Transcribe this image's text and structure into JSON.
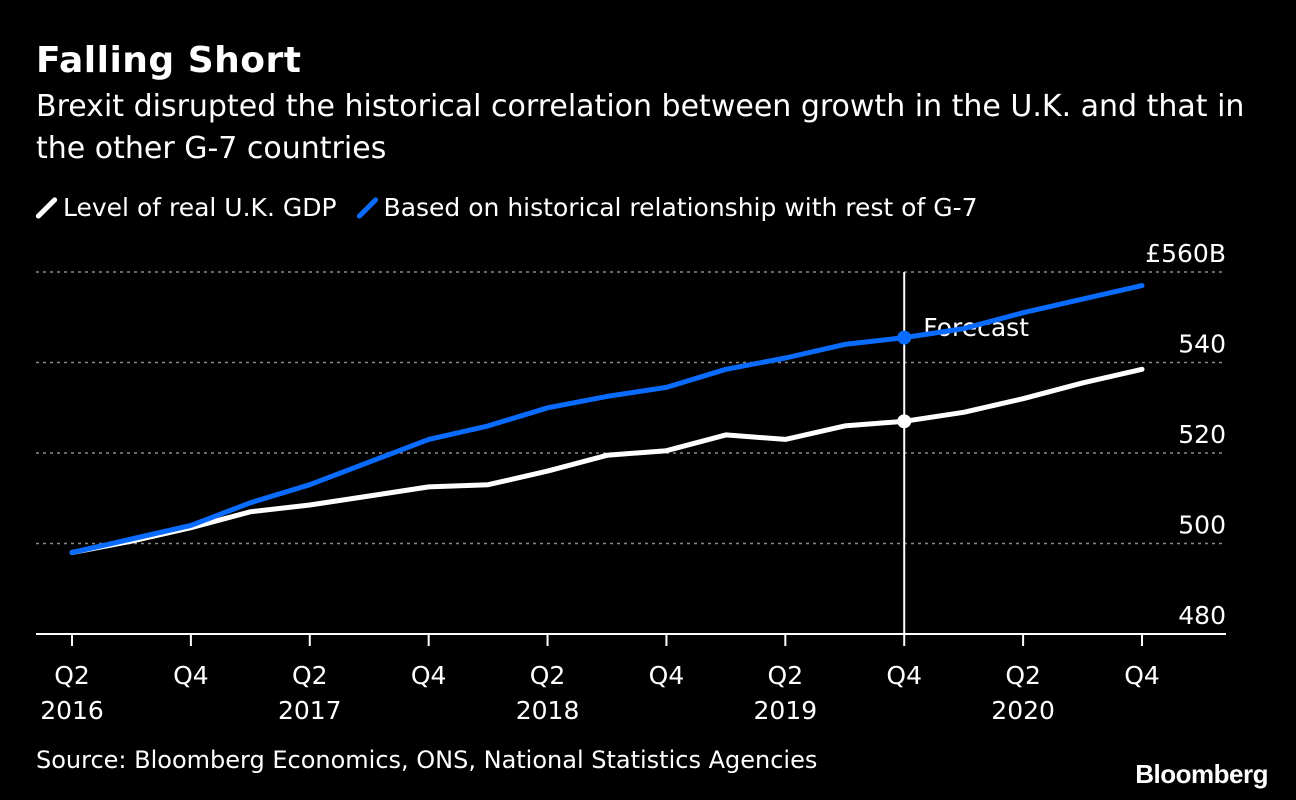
{
  "title": "Falling Short",
  "subtitle": "Brexit disrupted the historical correlation between growth in the U.K. and that in the other G-7 countries",
  "source": "Source: Bloomberg Economics, ONS, National Statistics Agencies",
  "brand": "Bloomberg",
  "colors": {
    "background": "#000000",
    "uk_gdp": "#ffffff",
    "g7_relationship": "#0a6cff",
    "grid": "#8a8a8a"
  },
  "chart_data": {
    "type": "line",
    "title": "Falling Short",
    "subtitle": "Brexit disrupted the historical correlation between growth in the U.K. and that in the other G-7 countries",
    "xlabel": "",
    "ylabel": "",
    "x": [
      "Q2 2016",
      "Q3 2016",
      "Q4 2016",
      "Q1 2017",
      "Q2 2017",
      "Q3 2017",
      "Q4 2017",
      "Q1 2018",
      "Q2 2018",
      "Q3 2018",
      "Q4 2018",
      "Q1 2019",
      "Q2 2019",
      "Q3 2019",
      "Q4 2019",
      "Q1 2020",
      "Q2 2020",
      "Q3 2020",
      "Q4 2020"
    ],
    "series": [
      {
        "name": "Level of real U.K. GDP",
        "color": "#ffffff",
        "values": [
          498,
          500.5,
          503.5,
          507,
          508.5,
          510.5,
          512.5,
          513,
          516,
          519.5,
          520.5,
          524,
          523,
          526,
          527,
          529,
          532,
          535.5,
          538.5
        ]
      },
      {
        "name": "Based on historical relationship with rest of G-7",
        "color": "#0a6cff",
        "values": [
          498,
          501,
          504,
          509,
          513,
          518,
          523,
          526,
          530,
          532.5,
          534.5,
          538.5,
          541,
          544,
          545.5,
          547.5,
          551,
          554,
          557
        ]
      }
    ],
    "forecast_marker": {
      "x": "Q4 2019",
      "label": "Forecast"
    },
    "xtick_labels": [
      {
        "x": "Q2 2016",
        "quarter": "Q2",
        "year": "2016"
      },
      {
        "x": "Q4 2016",
        "quarter": "Q4",
        "year": ""
      },
      {
        "x": "Q2 2017",
        "quarter": "Q2",
        "year": "2017"
      },
      {
        "x": "Q4 2017",
        "quarter": "Q4",
        "year": ""
      },
      {
        "x": "Q2 2018",
        "quarter": "Q2",
        "year": "2018"
      },
      {
        "x": "Q4 2018",
        "quarter": "Q4",
        "year": ""
      },
      {
        "x": "Q2 2019",
        "quarter": "Q2",
        "year": "2019"
      },
      {
        "x": "Q4 2019",
        "quarter": "Q4",
        "year": ""
      },
      {
        "x": "Q2 2020",
        "quarter": "Q2",
        "year": "2020"
      },
      {
        "x": "Q4 2020",
        "quarter": "Q4",
        "year": ""
      }
    ],
    "yticks": [
      {
        "value": 480,
        "label": "480"
      },
      {
        "value": 500,
        "label": "500"
      },
      {
        "value": 520,
        "label": "520"
      },
      {
        "value": 540,
        "label": "540"
      },
      {
        "value": 560,
        "label": "£560B"
      }
    ],
    "ylim": [
      480,
      560
    ],
    "grid": "horizontal dotted",
    "legend_position": "top-left"
  }
}
